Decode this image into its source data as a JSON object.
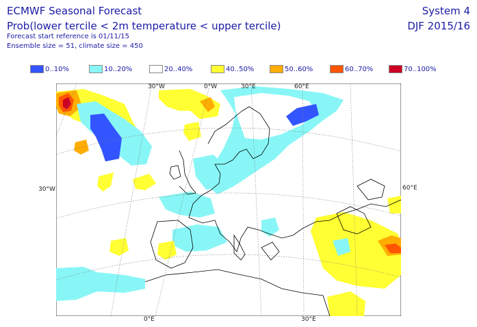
{
  "header": {
    "title": "ECMWF Seasonal Forecast",
    "subtitle": "Prob(lower tercile < 2m temperature < upper tercile)",
    "start_ref": "Forecast start reference is 01/11/15",
    "ensemble": "Ensemble size = 51, climate size = 450",
    "system": "System 4",
    "season": "DJF 2015/16"
  },
  "legend": [
    {
      "label": "0..10%",
      "color": "#3355ff"
    },
    {
      "label": "10..20%",
      "color": "#88f6f6"
    },
    {
      "label": "20..40%",
      "color": "#ffffff"
    },
    {
      "label": "40..50%",
      "color": "#ffff33"
    },
    {
      "label": "50..60%",
      "color": "#ffad00"
    },
    {
      "label": "60..70%",
      "color": "#ff5500"
    },
    {
      "label": "70..100%",
      "color": "#cc0022"
    }
  ],
  "map": {
    "top_labels": [
      "30°W",
      "0°W",
      "30°E",
      "60°E"
    ],
    "left_label": "30°W",
    "right_label": "60°E",
    "bottom_labels": [
      "0°E",
      "30°E"
    ]
  }
}
